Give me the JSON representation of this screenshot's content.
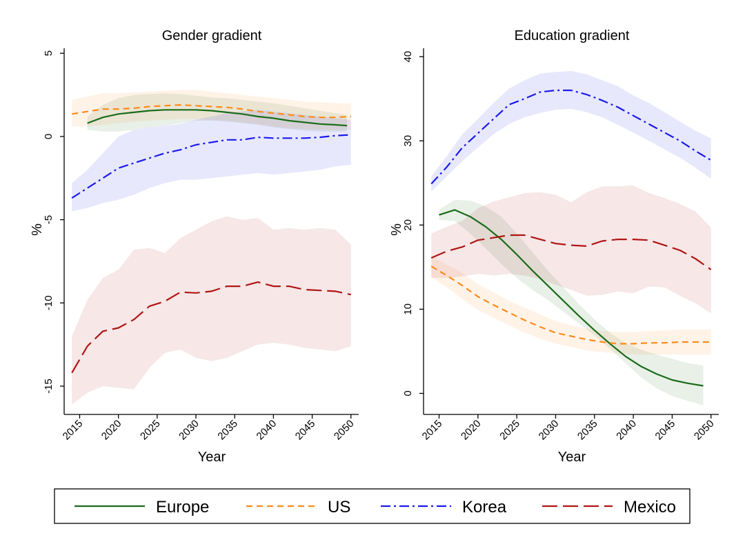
{
  "legend": [
    {
      "name": "Europe",
      "color": "#1a6b1a",
      "dash": "solid"
    },
    {
      "name": "US",
      "color": "#ff8a1a",
      "dash": "dashed"
    },
    {
      "name": "Korea",
      "color": "#1a1aee",
      "dash": "dashdot"
    },
    {
      "name": "Mexico",
      "color": "#b01414",
      "dash": "longdash"
    }
  ],
  "chart_data": [
    {
      "type": "line",
      "title": "Gender gradient",
      "xlabel": "Year",
      "ylabel": "%",
      "xlim": [
        2013,
        2051
      ],
      "ylim": [
        -16.7,
        5.3
      ],
      "xticks": [
        "2015",
        "2020",
        "2025",
        "2030",
        "2035",
        "2040",
        "2045",
        "2050"
      ],
      "yticks": [
        "5",
        "0",
        "-5",
        "-10",
        "-15"
      ],
      "series": [
        {
          "name": "Europe",
          "x": [
            2016,
            2018,
            2020,
            2022,
            2024,
            2026,
            2028,
            2030,
            2032,
            2034,
            2036,
            2038,
            2040,
            2042,
            2044,
            2046,
            2048,
            2049.5
          ],
          "y": [
            0.8,
            1.15,
            1.35,
            1.45,
            1.55,
            1.6,
            1.6,
            1.6,
            1.55,
            1.45,
            1.35,
            1.2,
            1.1,
            0.95,
            0.85,
            0.75,
            0.7,
            0.65
          ],
          "lower": [
            0.4,
            0.3,
            0.3,
            0.4,
            0.55,
            0.65,
            0.8,
            0.95,
            0.95,
            0.9,
            0.8,
            0.7,
            0.55,
            0.45,
            0.35,
            0.3,
            0.3,
            0.3
          ],
          "upper": [
            1.2,
            1.9,
            2.3,
            2.5,
            2.55,
            2.6,
            2.55,
            2.45,
            2.35,
            2.3,
            2.2,
            2.1,
            2.0,
            1.85,
            1.7,
            1.55,
            1.4,
            1.3
          ]
        },
        {
          "name": "US",
          "x": [
            2014,
            2016,
            2018,
            2020,
            2022,
            2024,
            2026,
            2028,
            2030,
            2032,
            2034,
            2036,
            2038,
            2040,
            2042,
            2044,
            2046,
            2048,
            2050
          ],
          "y": [
            1.35,
            1.5,
            1.65,
            1.65,
            1.7,
            1.8,
            1.85,
            1.9,
            1.85,
            1.8,
            1.75,
            1.65,
            1.5,
            1.4,
            1.3,
            1.2,
            1.15,
            1.15,
            1.2
          ],
          "lower": [
            0.6,
            0.6,
            0.7,
            0.8,
            0.9,
            0.95,
            1.0,
            1.05,
            1.05,
            1.0,
            0.95,
            0.85,
            0.75,
            0.6,
            0.5,
            0.45,
            0.4,
            0.4,
            0.4
          ],
          "upper": [
            2.2,
            2.4,
            2.6,
            2.6,
            2.65,
            2.7,
            2.75,
            2.8,
            2.8,
            2.7,
            2.6,
            2.5,
            2.4,
            2.3,
            2.2,
            2.1,
            2.05,
            2.0,
            2.0
          ]
        },
        {
          "name": "Korea",
          "x": [
            2014,
            2016,
            2018,
            2020,
            2022,
            2024,
            2026,
            2028,
            2030,
            2032,
            2034,
            2036,
            2038,
            2040,
            2042,
            2044,
            2046,
            2048,
            2050
          ],
          "y": [
            -3.7,
            -3.1,
            -2.5,
            -1.9,
            -1.6,
            -1.3,
            -1.0,
            -0.8,
            -0.5,
            -0.35,
            -0.2,
            -0.2,
            -0.05,
            -0.1,
            -0.1,
            -0.1,
            -0.05,
            0.05,
            0.1
          ],
          "lower": [
            -4.5,
            -4.3,
            -4.0,
            -3.8,
            -3.5,
            -3.1,
            -2.8,
            -2.6,
            -2.6,
            -2.5,
            -2.4,
            -2.3,
            -2.2,
            -2.3,
            -2.2,
            -2.1,
            -2.0,
            -1.8,
            -1.7
          ],
          "upper": [
            -2.8,
            -2.0,
            -1.0,
            0.0,
            0.4,
            0.55,
            0.65,
            0.75,
            1.0,
            1.2,
            1.4,
            1.5,
            1.6,
            1.5,
            1.4,
            1.3,
            1.2,
            1.1,
            1.0
          ]
        },
        {
          "name": "Mexico",
          "x": [
            2014,
            2016,
            2018,
            2020,
            2022,
            2024,
            2026,
            2028,
            2030,
            2032,
            2034,
            2036,
            2038,
            2040,
            2042,
            2044,
            2046,
            2048,
            2050
          ],
          "y": [
            -14.2,
            -12.6,
            -11.7,
            -11.5,
            -11.0,
            -10.2,
            -9.9,
            -9.35,
            -9.4,
            -9.3,
            -9.0,
            -9.0,
            -8.75,
            -9.0,
            -9.0,
            -9.2,
            -9.25,
            -9.3,
            -9.5
          ],
          "lower": [
            -16.1,
            -15.4,
            -15.0,
            -15.1,
            -15.2,
            -13.9,
            -13.0,
            -12.8,
            -13.3,
            -13.5,
            -13.3,
            -12.9,
            -12.5,
            -12.4,
            -12.5,
            -12.7,
            -12.8,
            -12.9,
            -12.6
          ],
          "upper": [
            -12.0,
            -9.8,
            -8.5,
            -8.0,
            -6.8,
            -6.7,
            -7.0,
            -6.1,
            -5.6,
            -5.1,
            -4.8,
            -5.0,
            -4.9,
            -5.6,
            -5.5,
            -5.6,
            -5.5,
            -5.6,
            -6.5
          ]
        }
      ]
    },
    {
      "type": "line",
      "title": "Education gradient",
      "xlabel": "Year",
      "ylabel": "%",
      "xlim": [
        2013,
        2051
      ],
      "ylim": [
        -2.5,
        41
      ],
      "xticks": [
        "2015",
        "2020",
        "2025",
        "2030",
        "2035",
        "2040",
        "2045",
        "2050"
      ],
      "yticks": [
        "40",
        "30",
        "20",
        "10",
        "0"
      ],
      "series": [
        {
          "name": "Europe",
          "x": [
            2015,
            2017,
            2019,
            2021,
            2023,
            2025,
            2027,
            2029,
            2031,
            2033,
            2035,
            2037,
            2039,
            2041,
            2043,
            2045,
            2047,
            2049
          ],
          "y": [
            21.2,
            21.8,
            21.0,
            19.8,
            18.3,
            16.5,
            14.6,
            12.8,
            11.0,
            9.2,
            7.5,
            5.9,
            4.4,
            3.2,
            2.3,
            1.6,
            1.2,
            0.9
          ],
          "lower": [
            20.6,
            20.5,
            19.0,
            17.2,
            15.4,
            13.7,
            12.3,
            11.1,
            9.7,
            8.3,
            6.9,
            5.3,
            3.6,
            1.9,
            0.6,
            -0.3,
            -0.9,
            -1.4
          ],
          "upper": [
            21.8,
            23.0,
            22.9,
            22.2,
            21.0,
            19.0,
            16.8,
            14.6,
            12.6,
            10.6,
            8.8,
            7.2,
            6.0,
            5.2,
            4.6,
            4.1,
            3.6,
            3.3
          ]
        },
        {
          "name": "US",
          "x": [
            2014,
            2016,
            2018,
            2020,
            2022,
            2024,
            2026,
            2028,
            2030,
            2032,
            2034,
            2036,
            2038,
            2040,
            2042,
            2044,
            2046,
            2048,
            2050
          ],
          "y": [
            15.1,
            14.0,
            12.8,
            11.5,
            10.5,
            9.6,
            8.7,
            7.9,
            7.2,
            6.8,
            6.4,
            6.1,
            5.9,
            5.9,
            6.0,
            6.0,
            6.1,
            6.1,
            6.1
          ],
          "lower": [
            13.8,
            12.6,
            11.2,
            9.9,
            9.0,
            8.1,
            7.2,
            6.5,
            5.9,
            5.5,
            5.1,
            4.9,
            4.7,
            4.6,
            4.6,
            4.6,
            4.6,
            4.6,
            4.6
          ],
          "upper": [
            16.3,
            15.3,
            14.3,
            13.0,
            12.0,
            11.0,
            10.2,
            9.4,
            8.6,
            8.1,
            7.7,
            7.4,
            7.3,
            7.3,
            7.4,
            7.5,
            7.6,
            7.6,
            7.6
          ]
        },
        {
          "name": "Korea",
          "x": [
            2014,
            2016,
            2018,
            2020,
            2022,
            2024,
            2026,
            2028,
            2030,
            2032,
            2034,
            2036,
            2038,
            2040,
            2042,
            2044,
            2046,
            2048,
            2050
          ],
          "y": [
            24.9,
            26.9,
            29.2,
            30.9,
            32.6,
            34.3,
            35.0,
            35.8,
            36.0,
            36.0,
            35.5,
            34.8,
            34.0,
            33.0,
            32.0,
            31.0,
            30.0,
            28.8,
            27.7
          ],
          "lower": [
            24.0,
            25.8,
            27.6,
            29.2,
            30.8,
            32.0,
            32.8,
            33.3,
            33.7,
            33.8,
            33.4,
            32.8,
            31.9,
            31.0,
            30.0,
            29.0,
            28.0,
            26.8,
            25.5
          ],
          "upper": [
            25.8,
            28.2,
            30.8,
            32.6,
            34.5,
            36.2,
            37.2,
            38.0,
            38.2,
            38.3,
            37.9,
            37.2,
            36.5,
            35.4,
            34.5,
            33.4,
            32.3,
            31.2,
            30.3
          ]
        },
        {
          "name": "Mexico",
          "x": [
            2014,
            2016,
            2018,
            2020,
            2022,
            2024,
            2026,
            2028,
            2030,
            2032,
            2034,
            2036,
            2038,
            2040,
            2042,
            2044,
            2046,
            2048,
            2050
          ],
          "y": [
            16.1,
            16.9,
            17.4,
            18.2,
            18.5,
            18.8,
            18.8,
            18.3,
            17.8,
            17.6,
            17.5,
            18.1,
            18.3,
            18.3,
            18.2,
            17.6,
            17.0,
            16.0,
            14.7
          ],
          "lower": [
            13.7,
            13.7,
            13.9,
            14.2,
            14.0,
            14.2,
            14.0,
            13.6,
            12.9,
            12.3,
            11.6,
            11.7,
            12.1,
            11.9,
            12.7,
            12.6,
            11.6,
            10.7,
            9.5
          ],
          "upper": [
            19.0,
            19.8,
            20.5,
            22.0,
            22.8,
            23.3,
            23.8,
            23.9,
            23.6,
            22.7,
            23.9,
            24.6,
            24.6,
            24.7,
            23.8,
            23.2,
            22.5,
            21.6,
            19.7
          ]
        }
      ]
    }
  ]
}
